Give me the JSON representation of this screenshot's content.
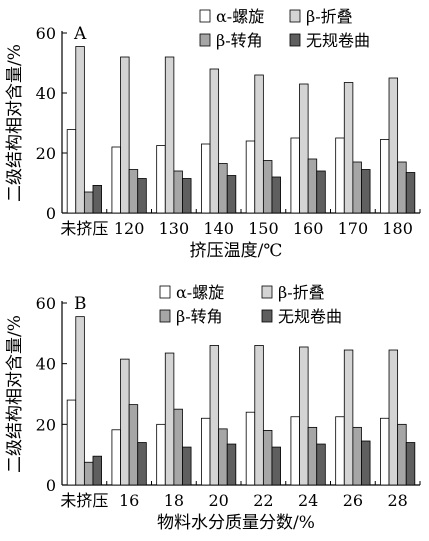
{
  "chart_data": [
    {
      "type": "bar",
      "panel_label": "A",
      "xlabel": "挤压温度/℃",
      "ylabel": "二级结构相对含量/%",
      "ylim": [
        0,
        60
      ],
      "yticks": [
        0,
        20,
        40,
        60
      ],
      "categories": [
        "未挤压",
        "120",
        "130",
        "140",
        "150",
        "160",
        "170",
        "180"
      ],
      "series": [
        {
          "name": "α-螺旋",
          "color": "#ffffff",
          "values": [
            27.8,
            22,
            22.5,
            23,
            24,
            25,
            25,
            24.5
          ]
        },
        {
          "name": "β-折叠",
          "color": "#d4d4d4",
          "values": [
            55.5,
            52,
            52,
            48,
            46,
            43,
            43.5,
            45
          ]
        },
        {
          "name": "β-转角",
          "color": "#a6a6a6",
          "values": [
            7,
            14.5,
            14,
            16.5,
            17.5,
            18,
            17,
            17
          ]
        },
        {
          "name": "无规卷曲",
          "color": "#5f5f5f",
          "values": [
            9.2,
            11.5,
            11.5,
            12.5,
            12,
            14,
            14.5,
            13.5
          ]
        }
      ]
    },
    {
      "type": "bar",
      "panel_label": "B",
      "xlabel": "物料水分质量分数/%",
      "ylabel": "二级结构相对含量/%",
      "ylim": [
        0,
        60
      ],
      "yticks": [
        0,
        20,
        40,
        60
      ],
      "categories": [
        "未挤压",
        "16",
        "18",
        "20",
        "22",
        "24",
        "26",
        "28"
      ],
      "series": [
        {
          "name": "α-螺旋",
          "color": "#ffffff",
          "values": [
            28,
            18.2,
            20,
            22,
            24,
            22.5,
            22.5,
            22
          ]
        },
        {
          "name": "β-折叠",
          "color": "#d4d4d4",
          "values": [
            55.5,
            41.5,
            43.5,
            46,
            46,
            45.5,
            44.5,
            44.5
          ]
        },
        {
          "name": "β-转角",
          "color": "#a6a6a6",
          "values": [
            7.5,
            26.5,
            25,
            18.5,
            18,
            19,
            19,
            20
          ]
        },
        {
          "name": "无规卷曲",
          "color": "#5f5f5f",
          "values": [
            9.5,
            14,
            12.5,
            13.5,
            12.5,
            13.5,
            14.5,
            14
          ]
        }
      ]
    }
  ]
}
